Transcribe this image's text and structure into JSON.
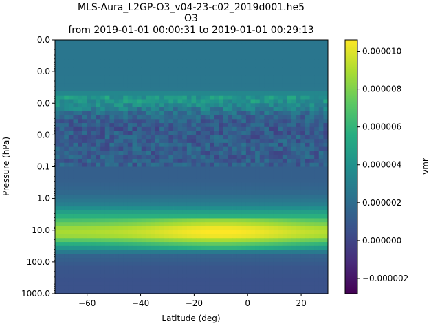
{
  "chart_data": {
    "type": "heatmap",
    "title_lines": [
      "MLS-Aura_L2GP-O3_v04-23-c02_2019d001.he5",
      "O3",
      "from 2019-01-01 00:00:31 to 2019-01-01 00:29:13"
    ],
    "xlabel": "Latitude (deg)",
    "ylabel": "Pressure (hPa)",
    "colorbar_label": "vmr",
    "colormap": "viridis",
    "xlim": [
      -72,
      30
    ],
    "ylim_log10_pressure": [
      -5,
      3
    ],
    "y_scale": "log",
    "y_inverted": true,
    "x_ticks": [
      -60,
      -40,
      -20,
      0,
      20
    ],
    "x_tick_labels": [
      "−60",
      "−40",
      "−20",
      "0",
      "20"
    ],
    "y_tick_pressures": [
      1e-05,
      0.0001,
      0.001,
      0.01,
      0.1,
      1,
      10,
      100,
      1000
    ],
    "y_tick_labels": [
      "0.0",
      "0.0",
      "0.0",
      "0.0",
      "0.1",
      "1.0",
      "10.0",
      "100.0",
      "1000.0"
    ],
    "clim": [
      -2.8e-06,
      1.06e-05
    ],
    "colorbar_ticks": [
      -2e-06,
      0,
      2e-06,
      4e-06,
      6e-06,
      8e-06,
      1e-05
    ],
    "colorbar_tick_labels": [
      "−0.000002",
      "0.000000",
      "0.000002",
      "0.000004",
      "0.000006",
      "0.000008",
      "0.000010"
    ],
    "profile": {
      "log10_pressure": [
        -5.0,
        -4.0,
        -3.4,
        -3.2,
        -3.0,
        -2.6,
        -2.2,
        -1.8,
        -1.4,
        -1.0,
        -0.6,
        -0.2,
        0.2,
        0.5,
        0.8,
        1.0,
        1.2,
        1.5,
        1.8,
        2.2,
        2.6,
        3.0
      ],
      "vmr_base": [
        2.5e-06,
        2.5e-06,
        2.6e-06,
        4.5e-06,
        4e-06,
        1.5e-06,
        1e-06,
        1.2e-06,
        1.2e-06,
        1.3e-06,
        1.3e-06,
        1.7e-06,
        3e-06,
        5.2e-06,
        7.5e-06,
        9e-06,
        8.5e-06,
        4.8e-06,
        1.5e-06,
        8e-07,
        6e-07,
        6e-07
      ],
      "equatorial_enhancement": 1.8e-06
    },
    "noise_band_log10_pressure": [
      -3.2,
      -1.0
    ],
    "noise_amplitude": 2.5e-06
  }
}
